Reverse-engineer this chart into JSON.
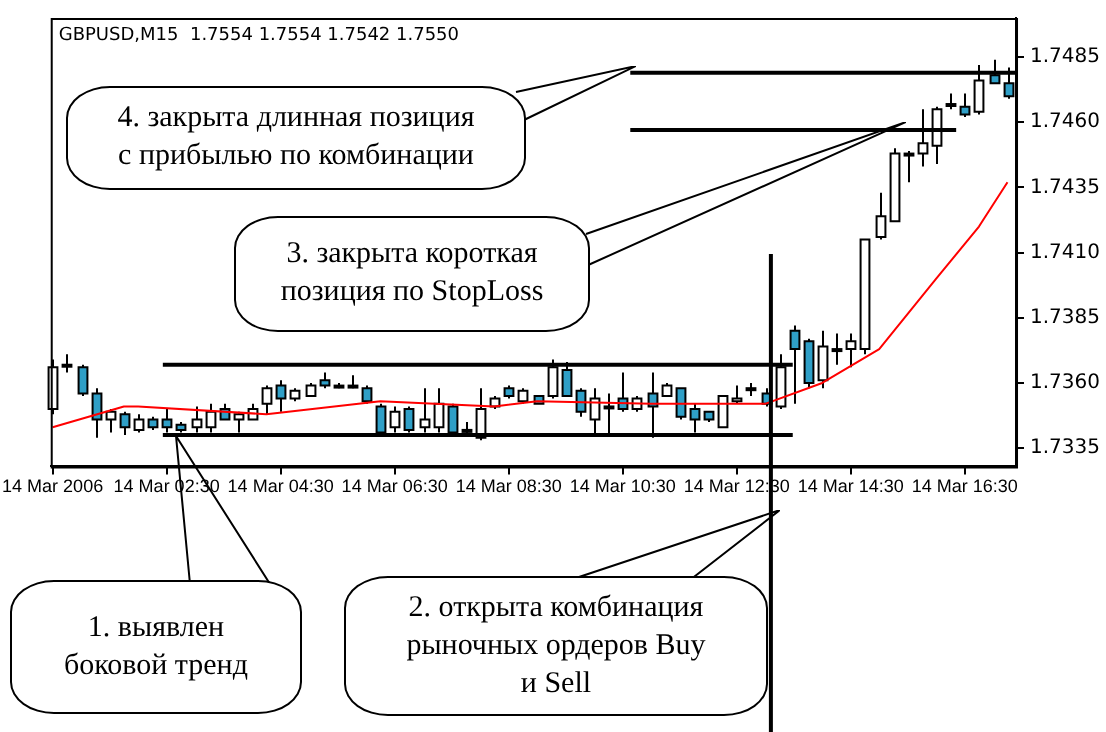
{
  "chart_data": {
    "type": "candlestick",
    "title": "GBPUSD,M15  1.7554 1.7554 1.7542 1.7550",
    "x": [
      "2006-03-14T00:30",
      "2006-03-14T00:45",
      "2006-03-14T01:00",
      "2006-03-14T01:15",
      "2006-03-14T01:30",
      "2006-03-14T01:45",
      "2006-03-14T02:00",
      "2006-03-14T02:15",
      "2006-03-14T02:30",
      "2006-03-14T02:45",
      "2006-03-14T03:00",
      "2006-03-14T03:15",
      "2006-03-14T03:30",
      "2006-03-14T03:45",
      "2006-03-14T04:00",
      "2006-03-14T04:15",
      "2006-03-14T04:30",
      "2006-03-14T04:45",
      "2006-03-14T05:00",
      "2006-03-14T05:15",
      "2006-03-14T05:30",
      "2006-03-14T05:45",
      "2006-03-14T06:00",
      "2006-03-14T06:15",
      "2006-03-14T06:30",
      "2006-03-14T06:45",
      "2006-03-14T07:00",
      "2006-03-14T07:15",
      "2006-03-14T07:30",
      "2006-03-14T07:45",
      "2006-03-14T08:00",
      "2006-03-14T08:15",
      "2006-03-14T08:30",
      "2006-03-14T08:45",
      "2006-03-14T09:00",
      "2006-03-14T09:15",
      "2006-03-14T09:30",
      "2006-03-14T09:45",
      "2006-03-14T10:00",
      "2006-03-14T10:15",
      "2006-03-14T10:30",
      "2006-03-14T10:45",
      "2006-03-14T11:00",
      "2006-03-14T11:15",
      "2006-03-14T11:30",
      "2006-03-14T11:45",
      "2006-03-14T12:00",
      "2006-03-14T12:15",
      "2006-03-14T12:30",
      "2006-03-14T12:45",
      "2006-03-14T13:00",
      "2006-03-14T13:15",
      "2006-03-14T13:30",
      "2006-03-14T13:45",
      "2006-03-14T14:00",
      "2006-03-14T14:15",
      "2006-03-14T14:30",
      "2006-03-14T14:45",
      "2006-03-14T15:00",
      "2006-03-14T15:15",
      "2006-03-14T15:30",
      "2006-03-14T15:45",
      "2006-03-14T16:00",
      "2006-03-14T16:15",
      "2006-03-14T16:30",
      "2006-03-14T16:45",
      "2006-03-14T17:00",
      "2006-03-14T17:15"
    ],
    "ohlc": [
      [
        1.735,
        1.7369,
        1.7348,
        1.7366
      ],
      [
        1.7367,
        1.7371,
        1.7364,
        1.7367
      ],
      [
        1.7366,
        1.7367,
        1.7355,
        1.7356
      ],
      [
        1.7356,
        1.7358,
        1.7339,
        1.7346
      ],
      [
        1.7346,
        1.735,
        1.7341,
        1.7349
      ],
      [
        1.7348,
        1.7349,
        1.734,
        1.7343
      ],
      [
        1.7342,
        1.7348,
        1.7341,
        1.7346
      ],
      [
        1.7346,
        1.7347,
        1.7342,
        1.7343
      ],
      [
        1.7346,
        1.735,
        1.7341,
        1.7343
      ],
      [
        1.7344,
        1.7345,
        1.7341,
        1.7342
      ],
      [
        1.7343,
        1.7351,
        1.7341,
        1.7346
      ],
      [
        1.7343,
        1.7352,
        1.7341,
        1.7349
      ],
      [
        1.735,
        1.7352,
        1.7346,
        1.7346
      ],
      [
        1.7346,
        1.7349,
        1.7341,
        1.7348
      ],
      [
        1.7346,
        1.7352,
        1.7346,
        1.735
      ],
      [
        1.7352,
        1.7359,
        1.7348,
        1.7358
      ],
      [
        1.7359,
        1.7361,
        1.7349,
        1.7354
      ],
      [
        1.7354,
        1.7358,
        1.7353,
        1.7357
      ],
      [
        1.7355,
        1.736,
        1.7355,
        1.7359
      ],
      [
        1.7361,
        1.7364,
        1.7358,
        1.7359
      ],
      [
        1.7359,
        1.736,
        1.7358,
        1.7359
      ],
      [
        1.7359,
        1.7363,
        1.7358,
        1.7359
      ],
      [
        1.7358,
        1.7359,
        1.7352,
        1.7353
      ],
      [
        1.7351,
        1.7352,
        1.734,
        1.7341
      ],
      [
        1.7343,
        1.7351,
        1.7341,
        1.7349
      ],
      [
        1.735,
        1.7351,
        1.7341,
        1.7342
      ],
      [
        1.7343,
        1.7358,
        1.7341,
        1.7346
      ],
      [
        1.7343,
        1.7358,
        1.7341,
        1.7352
      ],
      [
        1.7351,
        1.7352,
        1.734,
        1.7341
      ],
      [
        1.7342,
        1.7345,
        1.734,
        1.7342
      ],
      [
        1.7339,
        1.7358,
        1.7338,
        1.735
      ],
      [
        1.7351,
        1.7355,
        1.735,
        1.7354
      ],
      [
        1.7358,
        1.7359,
        1.7354,
        1.7355
      ],
      [
        1.7353,
        1.7358,
        1.7352,
        1.7357
      ],
      [
        1.7355,
        1.7355,
        1.7352,
        1.7352
      ],
      [
        1.7355,
        1.7369,
        1.7354,
        1.7366
      ],
      [
        1.7365,
        1.7368,
        1.7355,
        1.7355
      ],
      [
        1.7357,
        1.7358,
        1.7347,
        1.7349
      ],
      [
        1.7346,
        1.7358,
        1.734,
        1.7354
      ],
      [
        1.7351,
        1.7356,
        1.734,
        1.7351
      ],
      [
        1.7354,
        1.7364,
        1.7349,
        1.735
      ],
      [
        1.735,
        1.7355,
        1.7349,
        1.7354
      ],
      [
        1.7356,
        1.7364,
        1.7339,
        1.7351
      ],
      [
        1.7355,
        1.736,
        1.7355,
        1.7359
      ],
      [
        1.7358,
        1.7358,
        1.7346,
        1.7347
      ],
      [
        1.735,
        1.7352,
        1.7341,
        1.7346
      ],
      [
        1.7349,
        1.7349,
        1.7345,
        1.7346
      ],
      [
        1.7343,
        1.7355,
        1.7343,
        1.7355
      ],
      [
        1.7353,
        1.7359,
        1.7352,
        1.7354
      ],
      [
        1.7358,
        1.736,
        1.7355,
        1.7358
      ],
      [
        1.7356,
        1.7358,
        1.7351,
        1.7352
      ],
      [
        1.7351,
        1.7371,
        1.735,
        1.7366
      ],
      [
        1.738,
        1.7382,
        1.7352,
        1.7373
      ],
      [
        1.7376,
        1.7377,
        1.7358,
        1.736
      ],
      [
        1.7361,
        1.738,
        1.7358,
        1.7374
      ],
      [
        1.7373,
        1.7379,
        1.7367,
        1.7373
      ],
      [
        1.7373,
        1.7379,
        1.7366,
        1.7376
      ],
      [
        1.7373,
        1.7415,
        1.7371,
        1.7415
      ],
      [
        1.7416,
        1.7433,
        1.7415,
        1.7424
      ],
      [
        1.7422,
        1.745,
        1.7422,
        1.7448
      ],
      [
        1.7448,
        1.7449,
        1.7437,
        1.7448
      ],
      [
        1.7448,
        1.7465,
        1.7443,
        1.7452
      ],
      [
        1.7451,
        1.7466,
        1.7444,
        1.7465
      ],
      [
        1.7467,
        1.7471,
        1.7465,
        1.7467
      ],
      [
        1.7466,
        1.7471,
        1.7462,
        1.7463
      ],
      [
        1.7464,
        1.7482,
        1.7463,
        1.7476
      ],
      [
        1.7478,
        1.7484,
        1.7475,
        1.7475
      ],
      [
        1.7475,
        1.7481,
        1.7469,
        1.747
      ]
    ],
    "colors": [
      "#ffffff",
      "#ffffff",
      "#2f9fc7",
      "#2f9fc7",
      "#ffffff",
      "#2f9fc7",
      "#ffffff",
      "#2f9fc7",
      "#2f9fc7",
      "#2f9fc7",
      "#ffffff",
      "#ffffff",
      "#2f9fc7",
      "#ffffff",
      "#ffffff",
      "#ffffff",
      "#2f9fc7",
      "#ffffff",
      "#ffffff",
      "#2f9fc7",
      "#ffffff",
      "#ffffff",
      "#2f9fc7",
      "#2f9fc7",
      "#ffffff",
      "#2f9fc7",
      "#ffffff",
      "#ffffff",
      "#2f9fc7",
      "#ffffff",
      "#ffffff",
      "#ffffff",
      "#2f9fc7",
      "#ffffff",
      "#2f9fc7",
      "#ffffff",
      "#2f9fc7",
      "#2f9fc7",
      "#ffffff",
      "#ffffff",
      "#2f9fc7",
      "#ffffff",
      "#2f9fc7",
      "#ffffff",
      "#2f9fc7",
      "#2f9fc7",
      "#2f9fc7",
      "#ffffff",
      "#ffffff",
      "#ffffff",
      "#2f9fc7",
      "#ffffff",
      "#2f9fc7",
      "#2f9fc7",
      "#ffffff",
      "#ffffff",
      "#ffffff",
      "#ffffff",
      "#ffffff",
      "#ffffff",
      "#ffffff",
      "#ffffff",
      "#ffffff",
      "#ffffff",
      "#2f9fc7",
      "#ffffff",
      "#2f9fc7",
      "#2f9fc7"
    ],
    "series": [
      {
        "type": "line",
        "color": "#ff0000",
        "x": [
          "2006-03-14T00:30",
          "2006-03-14T01:45",
          "2006-03-14T02:00",
          "2006-03-14T04:15",
          "2006-03-14T06:15",
          "2006-03-14T08:15",
          "2006-03-14T09:00",
          "2006-03-14T11:00",
          "2006-03-14T13:00",
          "2006-03-14T14:00",
          "2006-03-14T15:00",
          "2006-03-14T16:00",
          "2006-03-14T16:45",
          "2006-03-14T17:15"
        ],
        "values": [
          1.7343,
          1.7351,
          1.7351,
          1.7348,
          1.7353,
          1.7351,
          1.7353,
          1.7352,
          1.7352,
          1.736,
          1.7373,
          1.74,
          1.742,
          1.7437
        ]
      },
      {
        "type": "line",
        "color": "#000000",
        "x": [
          "2006-03-14T02:26",
          "2006-03-14T13:29"
        ],
        "values": [
          1.7367,
          1.7367
        ]
      },
      {
        "type": "line",
        "color": "#000000",
        "x": [
          "2006-03-14T02:26",
          "2006-03-14T13:29"
        ],
        "values": [
          1.734,
          1.734
        ]
      },
      {
        "type": "line",
        "color": "#000000",
        "x": [
          "2006-03-14T10:38",
          "2006-03-14T17:24"
        ],
        "values": [
          1.7479,
          1.7479
        ]
      },
      {
        "type": "line",
        "color": "#000000",
        "x": [
          "2006-03-14T10:38",
          "2006-03-14T16:21"
        ],
        "values": [
          1.7457,
          1.7457
        ]
      }
    ],
    "ref_lines": [
      {
        "axis": "x",
        "value": "2006-03-14T13:06",
        "color": "#000000"
      }
    ],
    "xlim": [
      "2006-03-14T00:28",
      "2006-03-14T17:24"
    ],
    "xticks": [
      {
        "value": "2006-03-14T00:30",
        "label": "14 Mar 2006"
      },
      {
        "value": "2006-03-14T02:30",
        "label": "14 Mar 02:30"
      },
      {
        "value": "2006-03-14T04:30",
        "label": "14 Mar 04:30"
      },
      {
        "value": "2006-03-14T06:30",
        "label": "14 Mar 06:30"
      },
      {
        "value": "2006-03-14T08:30",
        "label": "14 Mar 08:30"
      },
      {
        "value": "2006-03-14T10:30",
        "label": "14 Mar 10:30"
      },
      {
        "value": "2006-03-14T12:30",
        "label": "14 Mar 12:30"
      },
      {
        "value": "2006-03-14T14:30",
        "label": "14 Mar 14:30"
      },
      {
        "value": "2006-03-14T16:30",
        "label": "14 Mar 16:30"
      }
    ],
    "ylim": [
      1.7328,
      1.75
    ],
    "yticks": [
      1.7335,
      {
        "value": 1.736,
        "label": "1.7360"
      },
      1.7385,
      {
        "value": 1.741,
        "label": "1.7410"
      },
      1.7435,
      {
        "value": 1.746,
        "label": "1.7460"
      },
      1.7485
    ],
    "grid": false,
    "legend": false,
    "annotations": [
      "4. закрыта длинная позиция\nс прибылью по комбинации",
      "3. закрыта короткая\nпозиция по StopLoss",
      "1. выявлен\nбоковой тренд",
      "2. открыта комбинация\nрыночных ордеров Buy\nи Sell"
    ]
  }
}
